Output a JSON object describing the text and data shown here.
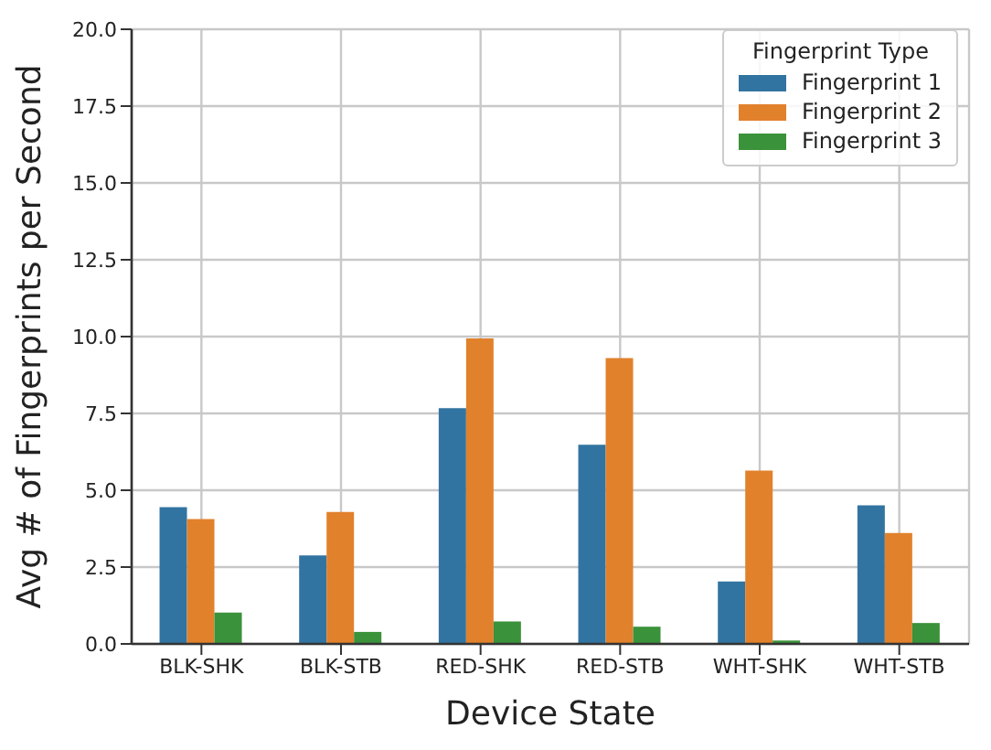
{
  "chart_data": {
    "type": "bar",
    "xlabel": "Device State",
    "ylabel": "Avg # of Fingerprints per Second",
    "legend_title": "Fingerprint Type",
    "categories": [
      "BLK-SHK",
      "BLK-STB",
      "RED-SHK",
      "RED-STB",
      "WHT-SHK",
      "WHT-STB"
    ],
    "series": [
      {
        "name": "Fingerprint 1",
        "color": "#3274a1",
        "values": [
          4.45,
          2.88,
          7.67,
          6.48,
          2.03,
          4.51
        ]
      },
      {
        "name": "Fingerprint 2",
        "color": "#e1812c",
        "values": [
          4.06,
          4.29,
          9.94,
          9.3,
          5.64,
          3.61
        ]
      },
      {
        "name": "Fingerprint 3",
        "color": "#3a923a",
        "values": [
          1.02,
          0.39,
          0.73,
          0.56,
          0.11,
          0.68
        ]
      }
    ],
    "ylim": [
      0,
      20
    ],
    "yticks": [
      {
        "value": 0,
        "label": "0.0"
      },
      {
        "value": 2.5,
        "label": "2.5"
      },
      {
        "value": 5,
        "label": "5.0"
      },
      {
        "value": 7.5,
        "label": "7.5"
      },
      {
        "value": 10,
        "label": "10.0"
      },
      {
        "value": 12.5,
        "label": "12.5"
      },
      {
        "value": 15,
        "label": "15.0"
      },
      {
        "value": 17.5,
        "label": "17.5"
      },
      {
        "value": 20,
        "label": "20.0"
      }
    ],
    "grid": true,
    "legend": "top right"
  }
}
